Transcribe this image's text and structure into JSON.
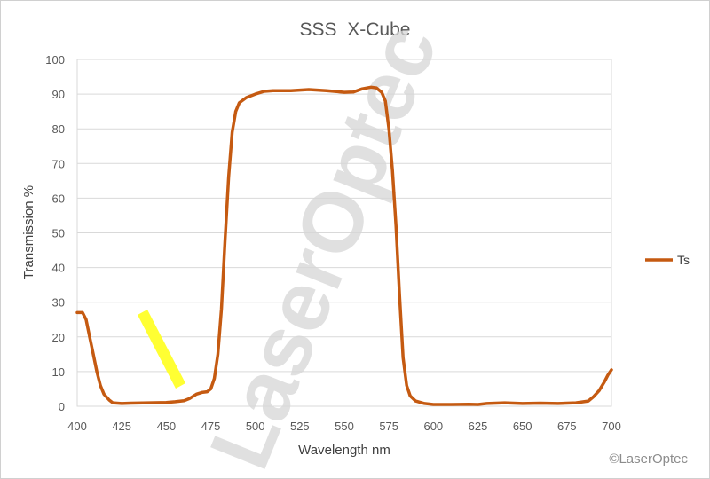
{
  "chart_data": {
    "type": "line",
    "title": "SSS  X-Cube",
    "xlabel": "Wavelength nm",
    "ylabel": "Transmission %",
    "xlim": [
      400,
      700
    ],
    "ylim": [
      0,
      100
    ],
    "x_ticks": [
      400,
      425,
      450,
      475,
      500,
      525,
      550,
      575,
      600,
      625,
      650,
      675,
      700
    ],
    "y_ticks": [
      0,
      10,
      20,
      30,
      40,
      50,
      60,
      70,
      80,
      90,
      100
    ],
    "grid": "horizontal",
    "legend_position": "right",
    "series": [
      {
        "name": "Ts",
        "color": "#c55a11",
        "points": [
          [
            400,
            27
          ],
          [
            403,
            27
          ],
          [
            405,
            25
          ],
          [
            407,
            20
          ],
          [
            409,
            15
          ],
          [
            411,
            10
          ],
          [
            413,
            6
          ],
          [
            415,
            3.5
          ],
          [
            418,
            1.8
          ],
          [
            420,
            1
          ],
          [
            425,
            0.8
          ],
          [
            430,
            0.9
          ],
          [
            440,
            1
          ],
          [
            450,
            1.1
          ],
          [
            455,
            1.3
          ],
          [
            460,
            1.6
          ],
          [
            463,
            2.2
          ],
          [
            467,
            3.5
          ],
          [
            470,
            4
          ],
          [
            473,
            4.2
          ],
          [
            475,
            5
          ],
          [
            477,
            8
          ],
          [
            479,
            15
          ],
          [
            481,
            28
          ],
          [
            483,
            48
          ],
          [
            485,
            66
          ],
          [
            487,
            79
          ],
          [
            489,
            85
          ],
          [
            491,
            87.5
          ],
          [
            495,
            89
          ],
          [
            500,
            90
          ],
          [
            505,
            90.8
          ],
          [
            510,
            91
          ],
          [
            520,
            91
          ],
          [
            530,
            91.3
          ],
          [
            540,
            91
          ],
          [
            550,
            90.5
          ],
          [
            555,
            90.6
          ],
          [
            560,
            91.5
          ],
          [
            565,
            92
          ],
          [
            568,
            91.8
          ],
          [
            571,
            90.5
          ],
          [
            573,
            88
          ],
          [
            575,
            80
          ],
          [
            577,
            68
          ],
          [
            579,
            52
          ],
          [
            581,
            32
          ],
          [
            583,
            14
          ],
          [
            585,
            6
          ],
          [
            587,
            3
          ],
          [
            590,
            1.5
          ],
          [
            595,
            0.8
          ],
          [
            600,
            0.5
          ],
          [
            610,
            0.5
          ],
          [
            620,
            0.6
          ],
          [
            625,
            0.5
          ],
          [
            630,
            0.8
          ],
          [
            640,
            1
          ],
          [
            650,
            0.8
          ],
          [
            660,
            0.9
          ],
          [
            670,
            0.8
          ],
          [
            680,
            1
          ],
          [
            687,
            1.5
          ],
          [
            690,
            2.8
          ],
          [
            693,
            4.5
          ],
          [
            696,
            7
          ],
          [
            698,
            9
          ],
          [
            700,
            10.5
          ]
        ]
      }
    ]
  },
  "watermark": {
    "text": "LaserOptec",
    "copyright": "©LaserOptec",
    "highlight_color": "#ffff33"
  }
}
